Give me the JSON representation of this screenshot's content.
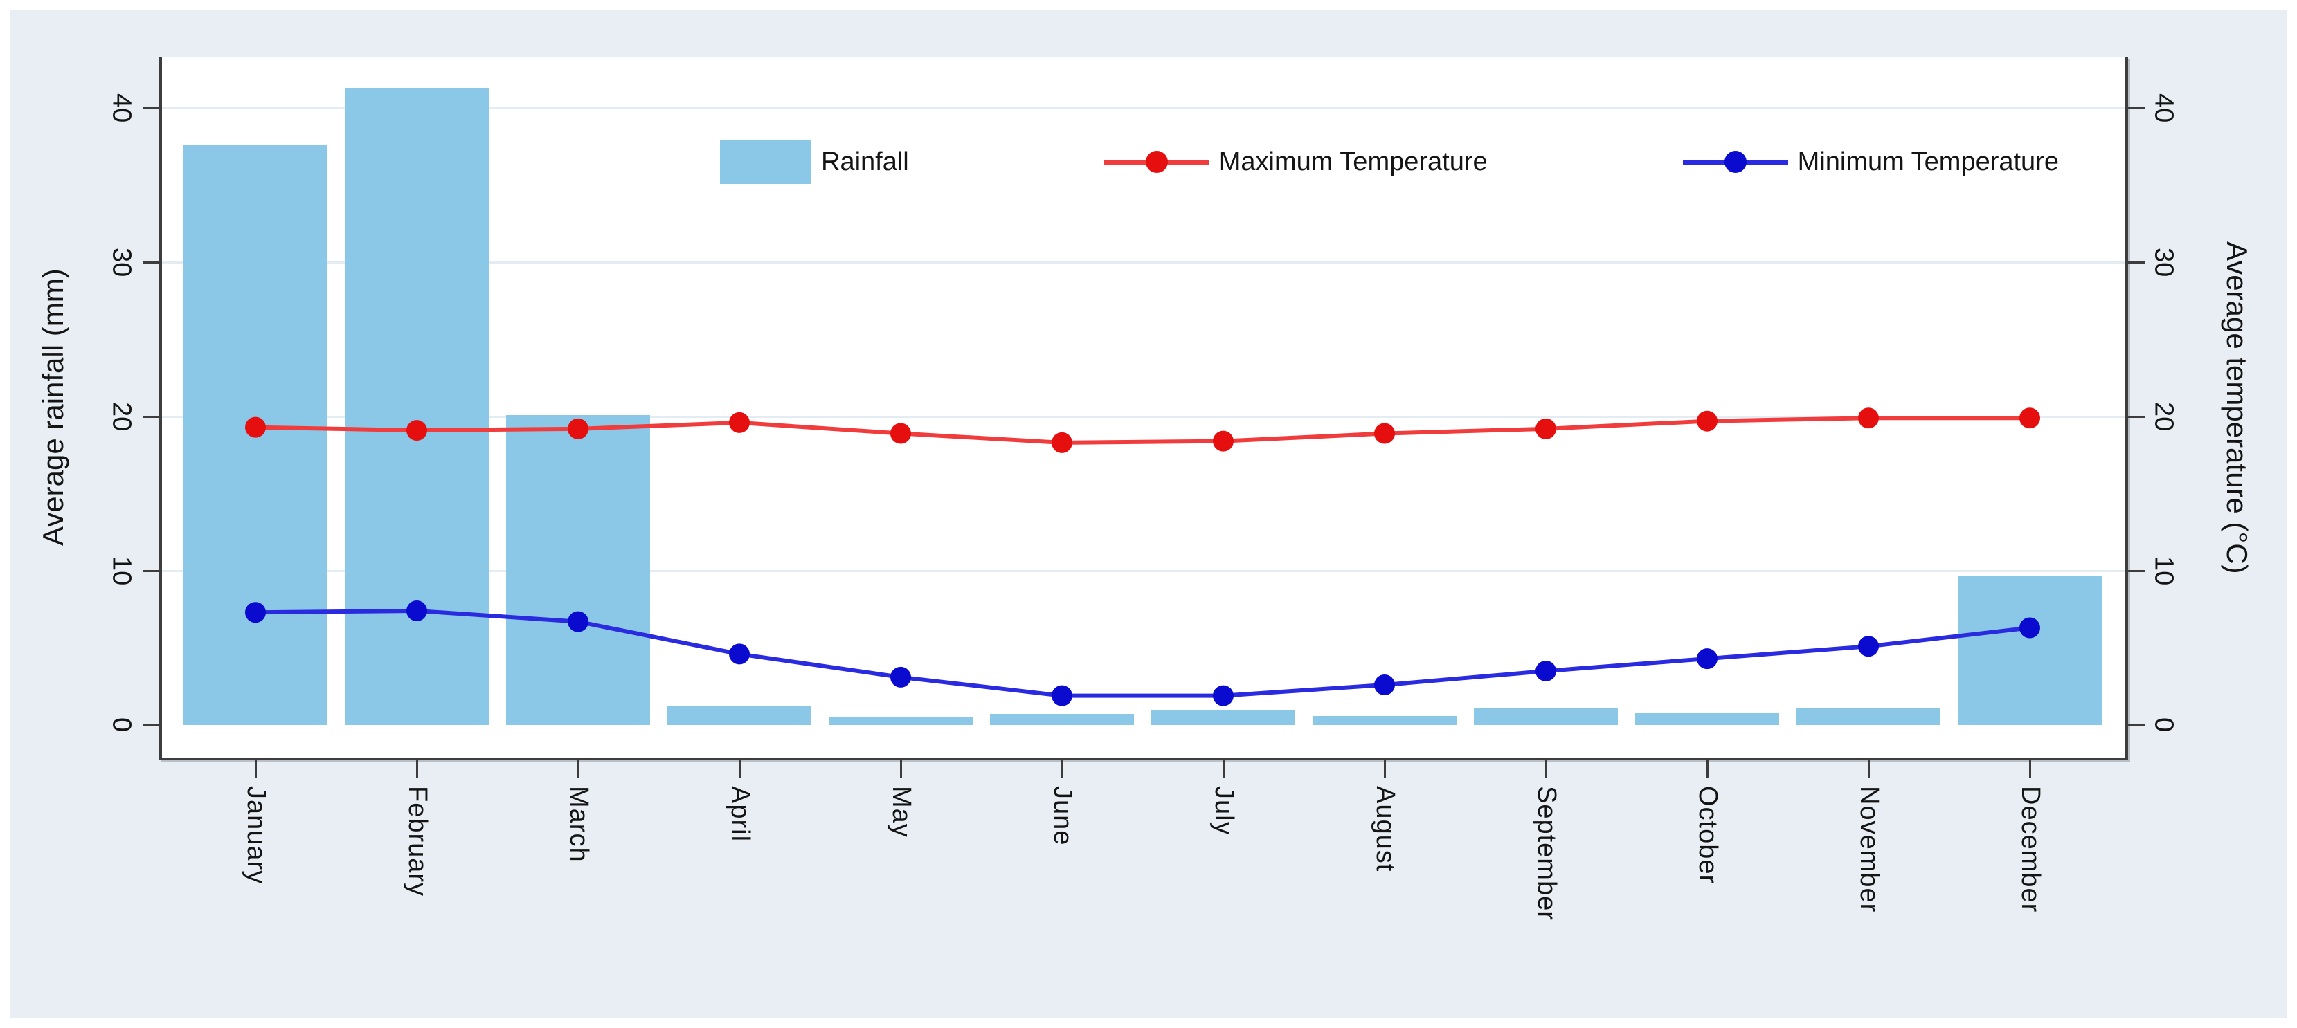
{
  "figure": {
    "background_color": "#ffffff",
    "region_color": "#e8eef3",
    "plot_background": "#ffffff",
    "axis_line_color": "#3d3d3d",
    "gridline_color": "#e4ecf3",
    "text_color": "#141414"
  },
  "chart_data": {
    "type": "bar+line",
    "dual_axis": true,
    "categories": [
      "January",
      "February",
      "March",
      "April",
      "May",
      "June",
      "July",
      "August",
      "September",
      "October",
      "November",
      "December"
    ],
    "series": [
      {
        "name": "Rainfall",
        "type": "bar",
        "axis": "left",
        "unit": "mm",
        "color": "#8bc7e7",
        "values": [
          37.6,
          41.3,
          20.1,
          1.2,
          0.5,
          0.7,
          1.0,
          0.6,
          1.1,
          0.8,
          1.1,
          9.7
        ]
      },
      {
        "name": "Maximum Temperature",
        "type": "line",
        "axis": "right",
        "unit": "°C",
        "color": "#f03c3c",
        "marker_color": "#e60f0f",
        "values": [
          19.3,
          19.1,
          19.2,
          19.6,
          18.9,
          18.3,
          18.4,
          18.9,
          19.2,
          19.7,
          19.9,
          19.9
        ]
      },
      {
        "name": "Minimum Temperature",
        "type": "line",
        "axis": "right",
        "unit": "°C",
        "color": "#2a2ae0",
        "marker_color": "#0b0bd0",
        "values": [
          7.3,
          7.4,
          6.7,
          4.6,
          3.1,
          1.9,
          1.9,
          2.6,
          3.5,
          4.3,
          5.1,
          6.3
        ]
      }
    ],
    "left_axis": {
      "title": "Average rainfall (mm)",
      "ticks": [
        0,
        10,
        20,
        30,
        40
      ],
      "range": [
        0,
        43
      ]
    },
    "right_axis": {
      "title": "Average temperature (°C)",
      "ticks": [
        0,
        10,
        20,
        30,
        40
      ],
      "range": [
        0,
        43
      ]
    },
    "grid": true,
    "legend_position": "top-center-inside"
  }
}
